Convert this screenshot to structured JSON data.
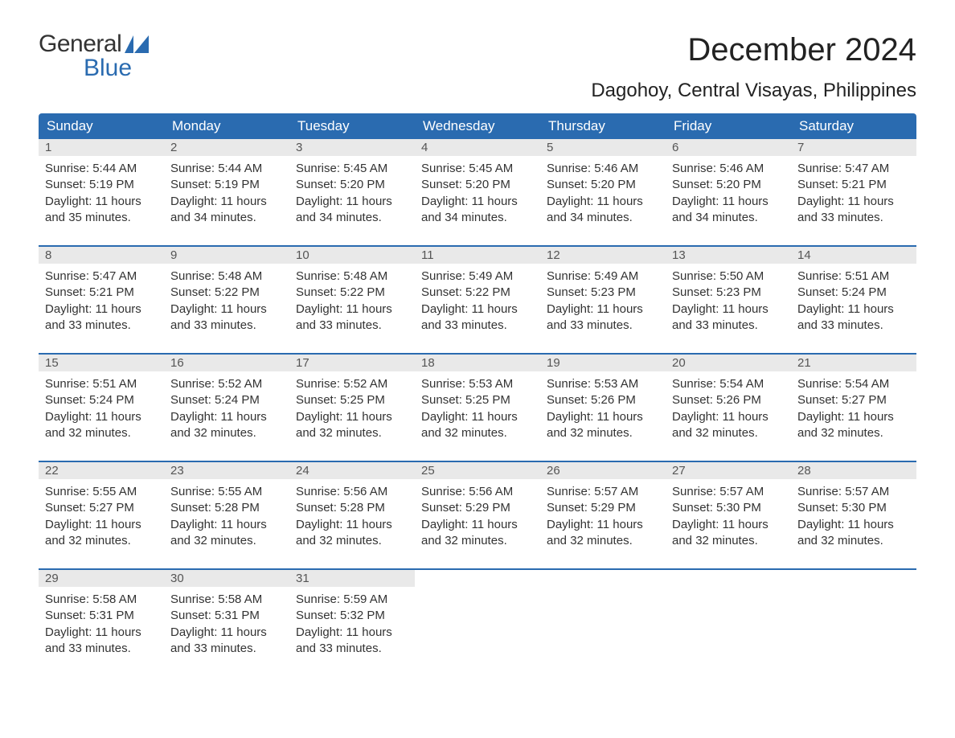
{
  "brand": {
    "word1": "General",
    "word2": "Blue",
    "logo_color": "#2a6bb0",
    "text_color": "#333333"
  },
  "title": "December 2024",
  "location": "Dagohoy, Central Visayas, Philippines",
  "colors": {
    "header_bg": "#2a6bb0",
    "header_fg": "#ffffff",
    "daynum_bg": "#e9e9e9",
    "body_bg": "#ffffff",
    "text": "#333333"
  },
  "dayNames": [
    "Sunday",
    "Monday",
    "Tuesday",
    "Wednesday",
    "Thursday",
    "Friday",
    "Saturday"
  ],
  "weeks": [
    [
      {
        "n": 1,
        "sr": "5:44 AM",
        "ss": "5:19 PM",
        "dl": "11 hours and 35 minutes."
      },
      {
        "n": 2,
        "sr": "5:44 AM",
        "ss": "5:19 PM",
        "dl": "11 hours and 34 minutes."
      },
      {
        "n": 3,
        "sr": "5:45 AM",
        "ss": "5:20 PM",
        "dl": "11 hours and 34 minutes."
      },
      {
        "n": 4,
        "sr": "5:45 AM",
        "ss": "5:20 PM",
        "dl": "11 hours and 34 minutes."
      },
      {
        "n": 5,
        "sr": "5:46 AM",
        "ss": "5:20 PM",
        "dl": "11 hours and 34 minutes."
      },
      {
        "n": 6,
        "sr": "5:46 AM",
        "ss": "5:20 PM",
        "dl": "11 hours and 34 minutes."
      },
      {
        "n": 7,
        "sr": "5:47 AM",
        "ss": "5:21 PM",
        "dl": "11 hours and 33 minutes."
      }
    ],
    [
      {
        "n": 8,
        "sr": "5:47 AM",
        "ss": "5:21 PM",
        "dl": "11 hours and 33 minutes."
      },
      {
        "n": 9,
        "sr": "5:48 AM",
        "ss": "5:22 PM",
        "dl": "11 hours and 33 minutes."
      },
      {
        "n": 10,
        "sr": "5:48 AM",
        "ss": "5:22 PM",
        "dl": "11 hours and 33 minutes."
      },
      {
        "n": 11,
        "sr": "5:49 AM",
        "ss": "5:22 PM",
        "dl": "11 hours and 33 minutes."
      },
      {
        "n": 12,
        "sr": "5:49 AM",
        "ss": "5:23 PM",
        "dl": "11 hours and 33 minutes."
      },
      {
        "n": 13,
        "sr": "5:50 AM",
        "ss": "5:23 PM",
        "dl": "11 hours and 33 minutes."
      },
      {
        "n": 14,
        "sr": "5:51 AM",
        "ss": "5:24 PM",
        "dl": "11 hours and 33 minutes."
      }
    ],
    [
      {
        "n": 15,
        "sr": "5:51 AM",
        "ss": "5:24 PM",
        "dl": "11 hours and 32 minutes."
      },
      {
        "n": 16,
        "sr": "5:52 AM",
        "ss": "5:24 PM",
        "dl": "11 hours and 32 minutes."
      },
      {
        "n": 17,
        "sr": "5:52 AM",
        "ss": "5:25 PM",
        "dl": "11 hours and 32 minutes."
      },
      {
        "n": 18,
        "sr": "5:53 AM",
        "ss": "5:25 PM",
        "dl": "11 hours and 32 minutes."
      },
      {
        "n": 19,
        "sr": "5:53 AM",
        "ss": "5:26 PM",
        "dl": "11 hours and 32 minutes."
      },
      {
        "n": 20,
        "sr": "5:54 AM",
        "ss": "5:26 PM",
        "dl": "11 hours and 32 minutes."
      },
      {
        "n": 21,
        "sr": "5:54 AM",
        "ss": "5:27 PM",
        "dl": "11 hours and 32 minutes."
      }
    ],
    [
      {
        "n": 22,
        "sr": "5:55 AM",
        "ss": "5:27 PM",
        "dl": "11 hours and 32 minutes."
      },
      {
        "n": 23,
        "sr": "5:55 AM",
        "ss": "5:28 PM",
        "dl": "11 hours and 32 minutes."
      },
      {
        "n": 24,
        "sr": "5:56 AM",
        "ss": "5:28 PM",
        "dl": "11 hours and 32 minutes."
      },
      {
        "n": 25,
        "sr": "5:56 AM",
        "ss": "5:29 PM",
        "dl": "11 hours and 32 minutes."
      },
      {
        "n": 26,
        "sr": "5:57 AM",
        "ss": "5:29 PM",
        "dl": "11 hours and 32 minutes."
      },
      {
        "n": 27,
        "sr": "5:57 AM",
        "ss": "5:30 PM",
        "dl": "11 hours and 32 minutes."
      },
      {
        "n": 28,
        "sr": "5:57 AM",
        "ss": "5:30 PM",
        "dl": "11 hours and 32 minutes."
      }
    ],
    [
      {
        "n": 29,
        "sr": "5:58 AM",
        "ss": "5:31 PM",
        "dl": "11 hours and 33 minutes."
      },
      {
        "n": 30,
        "sr": "5:58 AM",
        "ss": "5:31 PM",
        "dl": "11 hours and 33 minutes."
      },
      {
        "n": 31,
        "sr": "5:59 AM",
        "ss": "5:32 PM",
        "dl": "11 hours and 33 minutes."
      },
      null,
      null,
      null,
      null
    ]
  ],
  "labels": {
    "sunrise": "Sunrise: ",
    "sunset": "Sunset: ",
    "daylight": "Daylight: "
  }
}
